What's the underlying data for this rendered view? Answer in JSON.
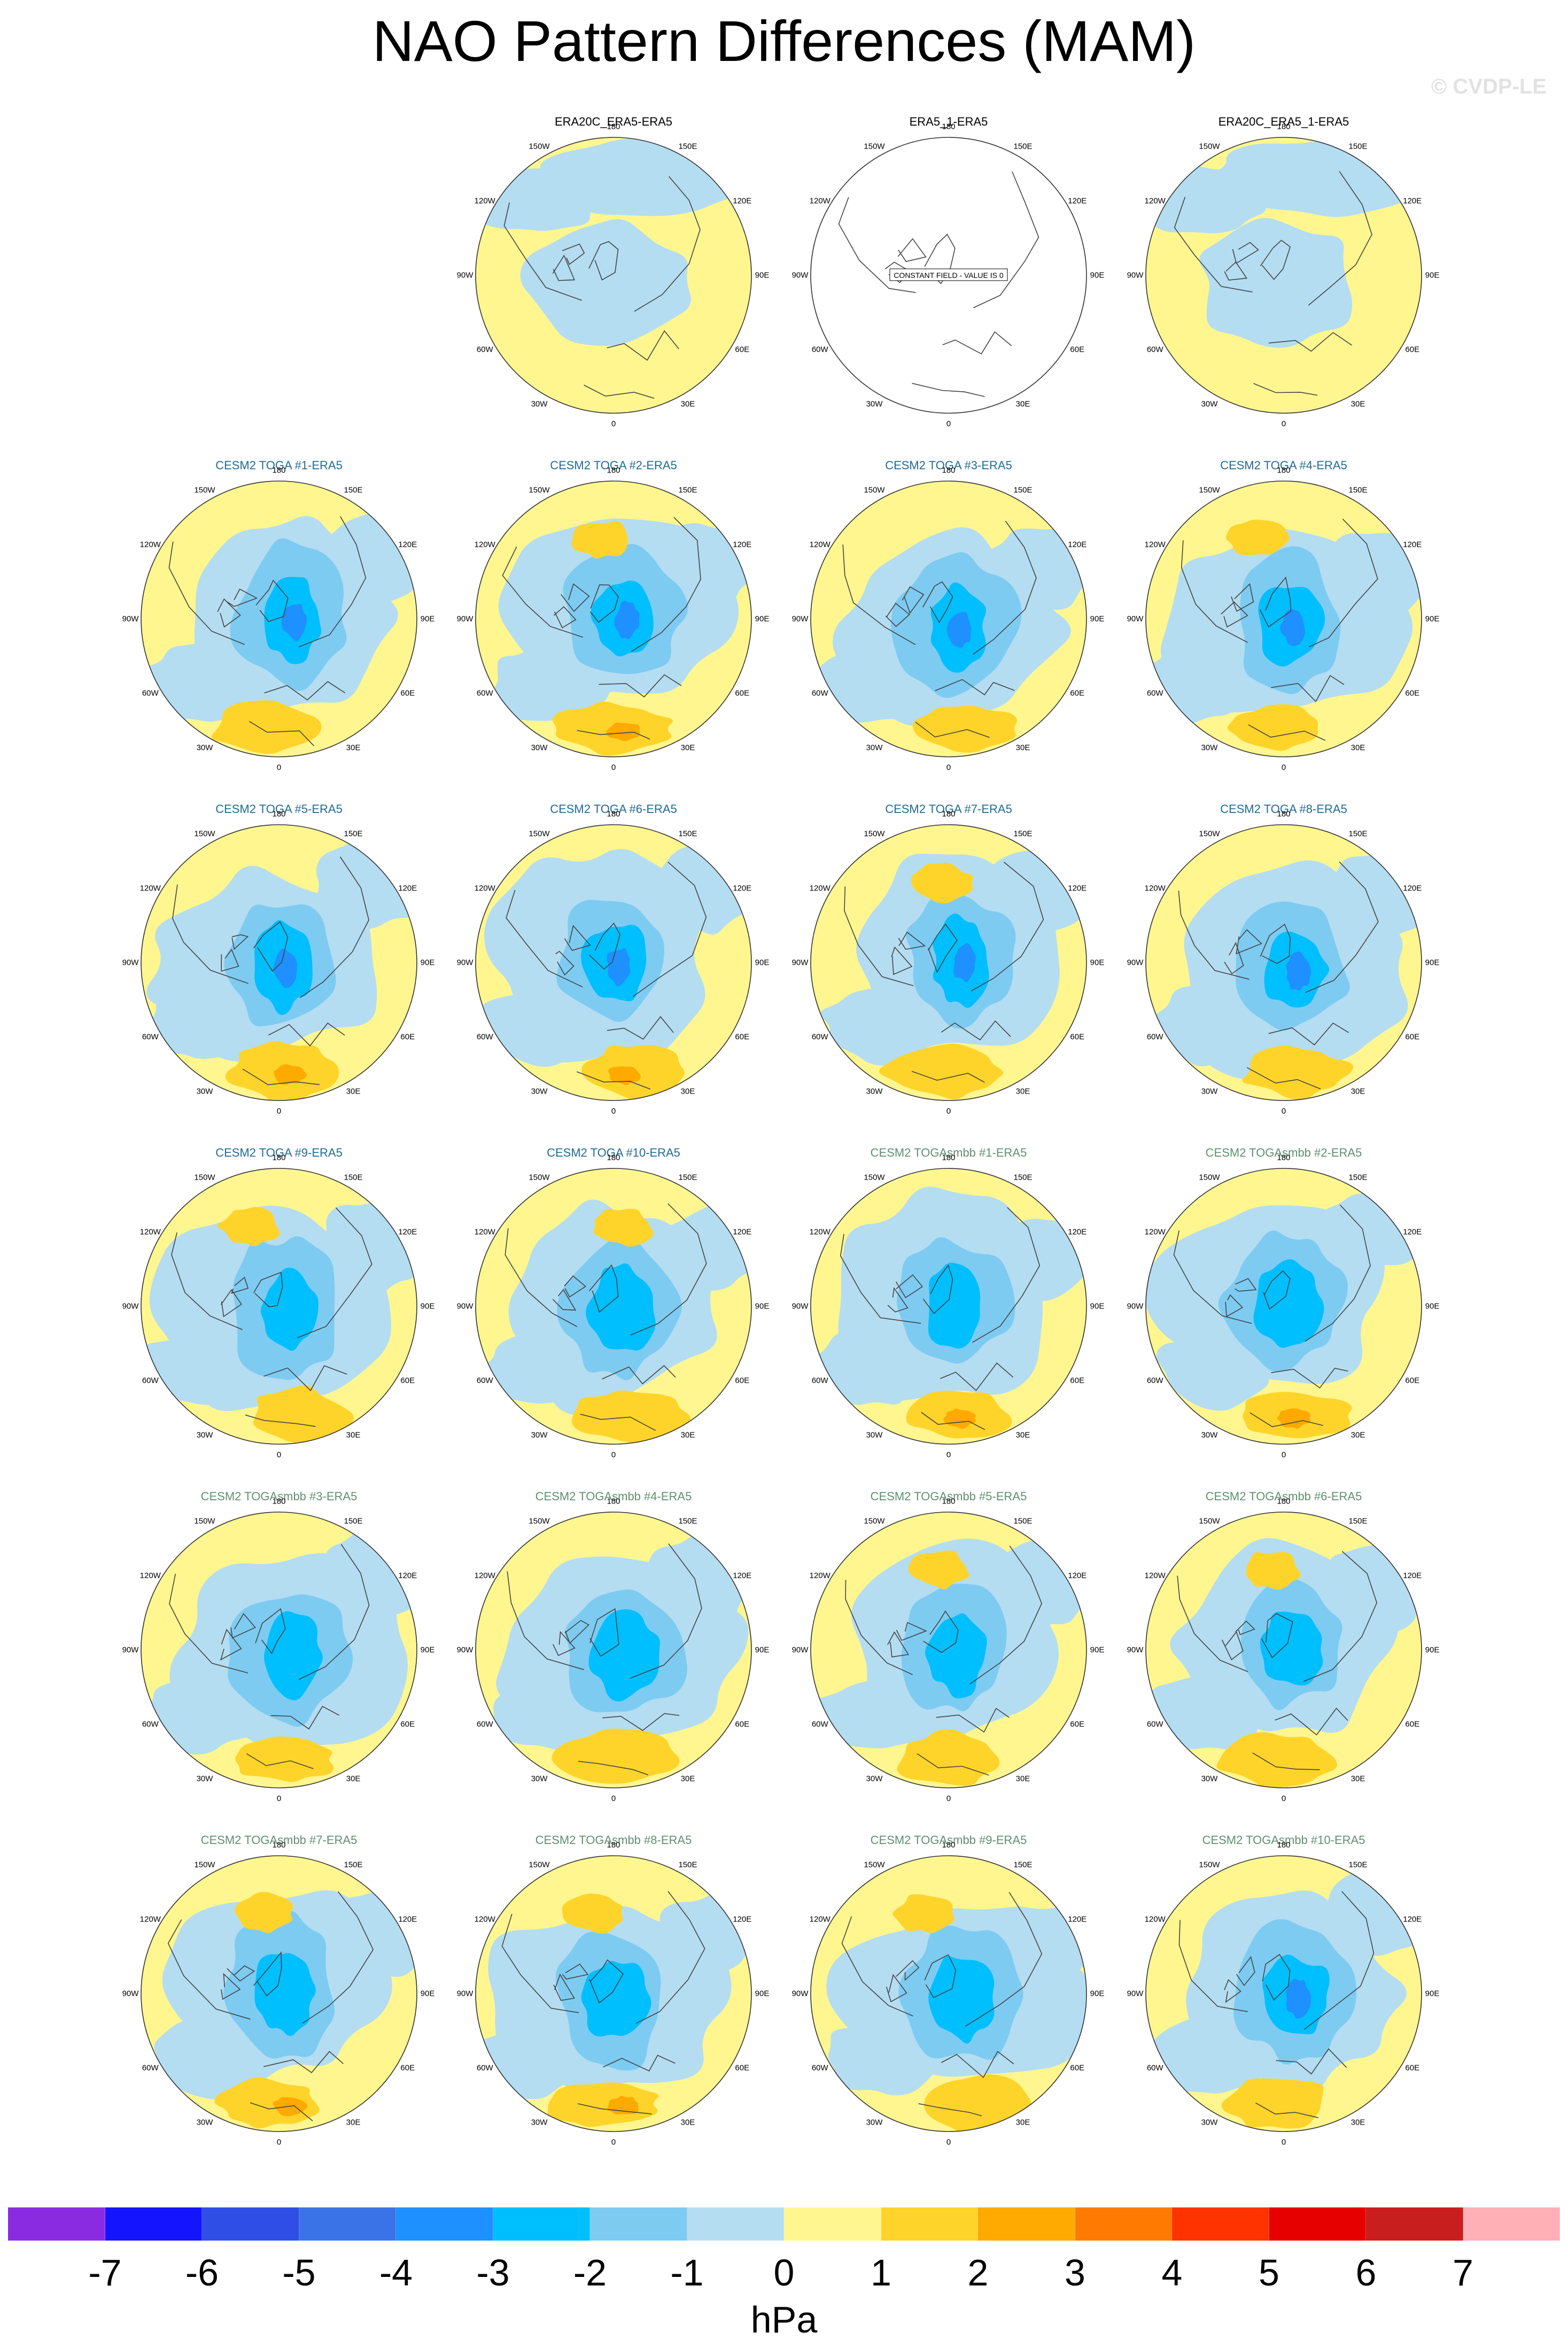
{
  "title": "NAO Pattern Differences (MAM)",
  "watermark": "© CVDP-LE",
  "colors": {
    "obs_label": "#000000",
    "toga_label": "#1f6b94",
    "smbb_label": "#5f8f6f",
    "coast": "#444444",
    "outline": "#333333"
  },
  "lon_labels": [
    "180",
    "150E",
    "120E",
    "90E",
    "60E",
    "30E",
    "0",
    "30W",
    "60W",
    "90W",
    "120W",
    "150W"
  ],
  "constant_field_text": "CONSTANT FIELD - VALUE IS 0",
  "panels": [
    {
      "label": "",
      "group": "empty",
      "state": "blank"
    },
    {
      "label": "ERA20C_ERA5-ERA5",
      "group": "obs",
      "state": "weak"
    },
    {
      "label": "ERA5_1-ERA5",
      "group": "obs",
      "state": "constant"
    },
    {
      "label": "ERA20C_ERA5_1-ERA5",
      "group": "obs",
      "state": "weak"
    },
    {
      "label": "CESM2 TOGA #1-ERA5",
      "group": "toga",
      "state": "field"
    },
    {
      "label": "CESM2 TOGA #2-ERA5",
      "group": "toga",
      "state": "field"
    },
    {
      "label": "CESM2 TOGA #3-ERA5",
      "group": "toga",
      "state": "field"
    },
    {
      "label": "CESM2 TOGA #4-ERA5",
      "group": "toga",
      "state": "field"
    },
    {
      "label": "CESM2 TOGA #5-ERA5",
      "group": "toga",
      "state": "field"
    },
    {
      "label": "CESM2 TOGA #6-ERA5",
      "group": "toga",
      "state": "field"
    },
    {
      "label": "CESM2 TOGA #7-ERA5",
      "group": "toga",
      "state": "field"
    },
    {
      "label": "CESM2 TOGA #8-ERA5",
      "group": "toga",
      "state": "field"
    },
    {
      "label": "CESM2 TOGA #9-ERA5",
      "group": "toga",
      "state": "field"
    },
    {
      "label": "CESM2 TOGA #10-ERA5",
      "group": "toga",
      "state": "field"
    },
    {
      "label": "CESM2 TOGAsmbb #1-ERA5",
      "group": "smbb",
      "state": "field"
    },
    {
      "label": "CESM2 TOGAsmbb #2-ERA5",
      "group": "smbb",
      "state": "field"
    },
    {
      "label": "CESM2 TOGAsmbb #3-ERA5",
      "group": "smbb",
      "state": "field"
    },
    {
      "label": "CESM2 TOGAsmbb #4-ERA5",
      "group": "smbb",
      "state": "field"
    },
    {
      "label": "CESM2 TOGAsmbb #5-ERA5",
      "group": "smbb",
      "state": "field"
    },
    {
      "label": "CESM2 TOGAsmbb #6-ERA5",
      "group": "smbb",
      "state": "field"
    },
    {
      "label": "CESM2 TOGAsmbb #7-ERA5",
      "group": "smbb",
      "state": "field"
    },
    {
      "label": "CESM2 TOGAsmbb #8-ERA5",
      "group": "smbb",
      "state": "field"
    },
    {
      "label": "CESM2 TOGAsmbb #9-ERA5",
      "group": "smbb",
      "state": "field"
    },
    {
      "label": "CESM2 TOGAsmbb #10-ERA5",
      "group": "smbb",
      "state": "field"
    }
  ],
  "colorbar": {
    "unit": "hPa",
    "ticks": [
      "-7",
      "-6",
      "-5",
      "-4",
      "-3",
      "-2",
      "-1",
      "0",
      "1",
      "2",
      "3",
      "4",
      "5",
      "6",
      "7"
    ],
    "colors": [
      "#8a2be2",
      "#1414ff",
      "#2e4ee6",
      "#3a73e8",
      "#1e90ff",
      "#00bfff",
      "#7ecbf2",
      "#b4ddf2",
      "#fff68f",
      "#ffd42a",
      "#ffaa00",
      "#ff7a00",
      "#ff3300",
      "#e60000",
      "#c81e1e",
      "#ffb0b6"
    ]
  }
}
